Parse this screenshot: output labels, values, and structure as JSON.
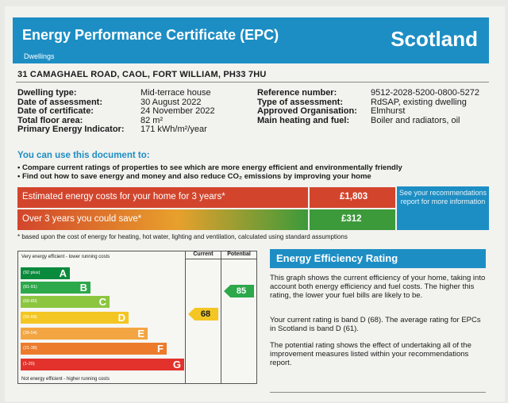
{
  "header": {
    "title": "Energy Performance Certificate (EPC)",
    "subtitle": "Dwellings",
    "country": "Scotland"
  },
  "address": "31 CAMAGHAEL ROAD, CAOL, FORT WILLIAM, PH33 7HU",
  "details_left": [
    {
      "label": "Dwelling type:",
      "value": "Mid-terrace house"
    },
    {
      "label": "Date of assessment:",
      "value": "30 August 2022"
    },
    {
      "label": "Date of certificate:",
      "value": "24 November 2022"
    },
    {
      "label": "Total floor area:",
      "value": "82 m²"
    },
    {
      "label": "Primary Energy Indicator:",
      "value": "171 kWh/m²/year"
    }
  ],
  "details_right": [
    {
      "label": "Reference number:",
      "value": "9512-2028-5200-0800-5272"
    },
    {
      "label": "Type of assessment:",
      "value": "RdSAP, existing dwelling"
    },
    {
      "label": "Approved Organisation:",
      "value": "Elmhurst"
    },
    {
      "label": "Main heating and fuel:",
      "value": "Boiler and radiators, oil"
    }
  ],
  "usage": {
    "title": "You can use this document to:",
    "bullets": [
      "Compare current ratings of properties to see which are more energy efficient and environmentally friendly",
      "Find out how to save energy and money and also reduce CO₂ emissions by improving your home"
    ]
  },
  "costs": {
    "estimated_label": "Estimated energy costs for your home for 3 years*",
    "estimated_value": "£1,803",
    "saving_label": "Over 3 years you could save*",
    "saving_value": "£312",
    "see_recs": "See your recommendations report for more information",
    "footnote": "* based upon the cost of energy for heating, hot water, lighting and ventilation, calculated using standard assumptions"
  },
  "rating_chart": {
    "top_label": "Very energy efficient - lower running costs",
    "bottom_label": "Not energy efficient - higher running costs",
    "col_current": "Current",
    "col_potential": "Potential",
    "bands": [
      {
        "letter": "A",
        "range": "(92 plus)",
        "color": "#0a8a3c"
      },
      {
        "letter": "B",
        "range": "(81-91)",
        "color": "#2da84a"
      },
      {
        "letter": "C",
        "range": "(69-80)",
        "color": "#8cc63f"
      },
      {
        "letter": "D",
        "range": "(55-68)",
        "color": "#f3c623"
      },
      {
        "letter": "E",
        "range": "(39-54)",
        "color": "#f2a541"
      },
      {
        "letter": "F",
        "range": "(21-38)",
        "color": "#ec7b2b"
      },
      {
        "letter": "G",
        "range": "(1-20)",
        "color": "#e2322b"
      }
    ],
    "current": {
      "value": "68",
      "band": "D",
      "color": "#f3c623"
    },
    "potential": {
      "value": "85",
      "band": "B",
      "color": "#2da84a"
    }
  },
  "eer": {
    "title": "Energy Efficiency Rating",
    "para1": "This graph shows the current efficiency of your home, taking into account both energy efficiency and fuel costs. The higher this rating, the lower your fuel bills are likely to be.",
    "para2": "Your current rating is band D (68). The average rating for EPCs in Scotland is band D (61).",
    "para3": "The potential rating shows the effect of undertaking all of the improvement measures listed within your recommendations report."
  },
  "colors": {
    "brand_blue": "#1d8ec4",
    "cost_red": "#d2452c",
    "saving_green": "#3c9a3a"
  }
}
